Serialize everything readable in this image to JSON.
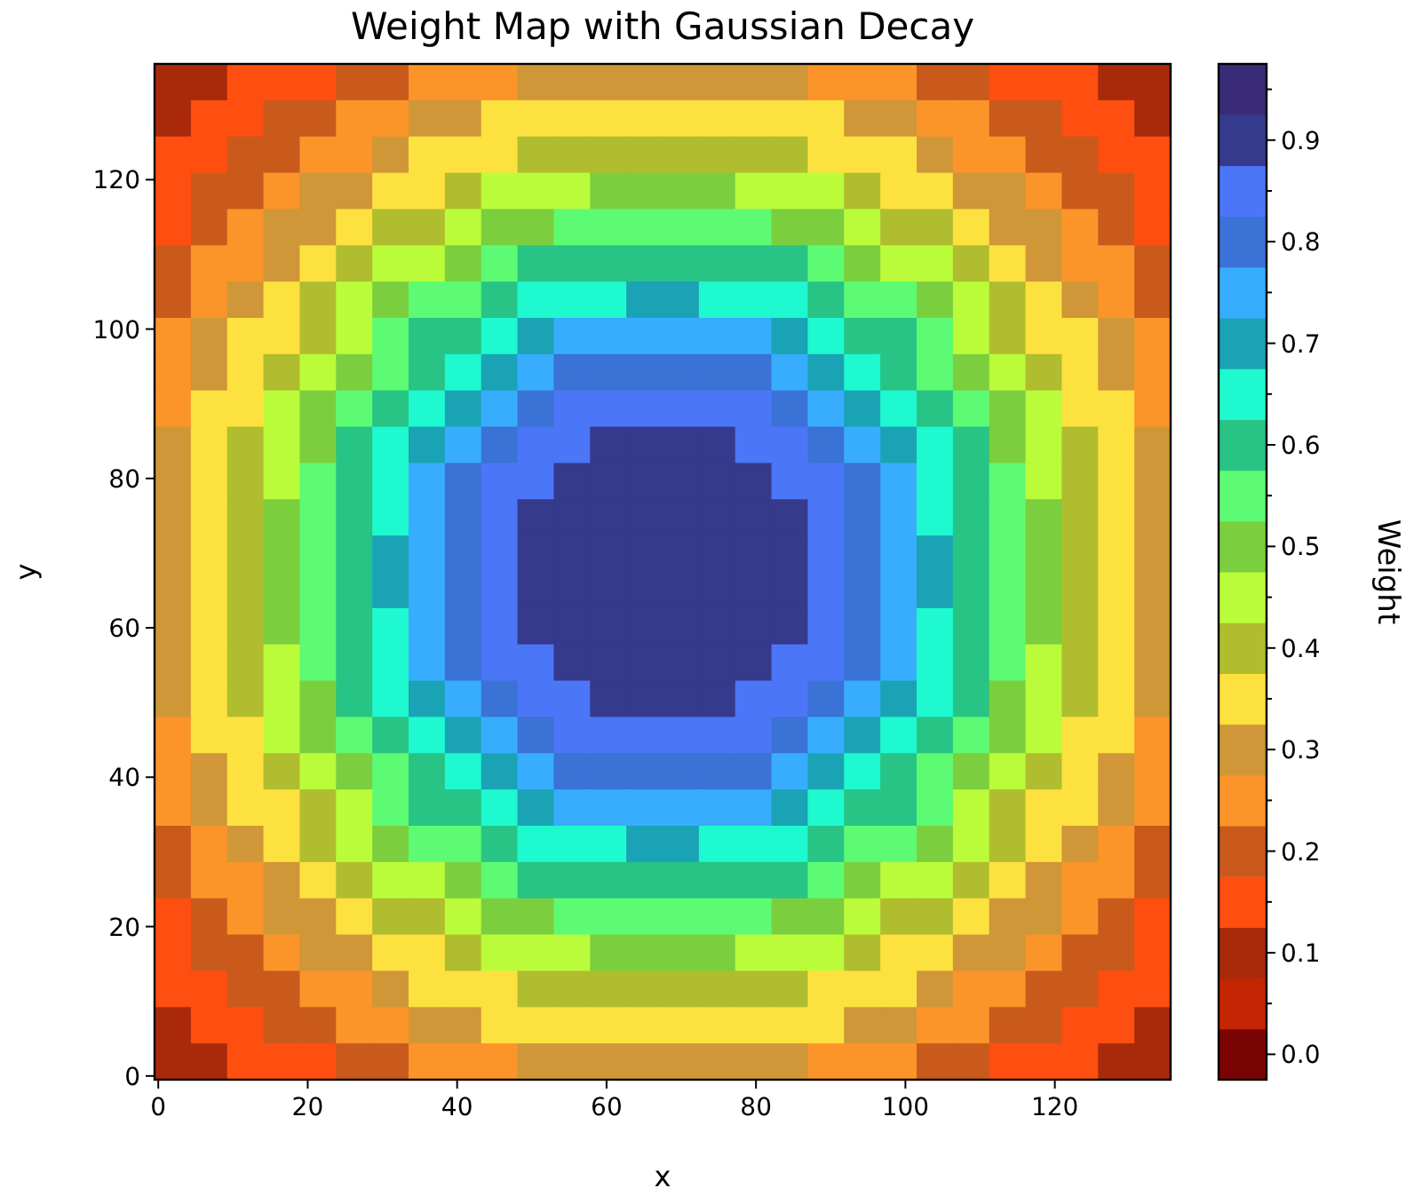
{
  "chart_data": {
    "type": "heatmap",
    "title": "Weight Map with Gaussian Decay",
    "xlabel": "x",
    "ylabel": "y",
    "clabel": "Weight",
    "xlim": [
      -0.5,
      135.5
    ],
    "ylim": [
      -0.5,
      135.5
    ],
    "xticks": [
      0,
      20,
      40,
      60,
      80,
      100,
      120
    ],
    "yticks": [
      0,
      20,
      40,
      60,
      80,
      100,
      120
    ],
    "clim": [
      -0.025,
      0.975
    ],
    "cticks": [
      {
        "value": 0,
        "label": "0.0"
      },
      {
        "value": 0.05,
        "label": null
      },
      {
        "value": 0.1,
        "label": "0.1"
      },
      {
        "value": 0.15,
        "label": null
      },
      {
        "value": 0.2,
        "label": "0.2"
      },
      {
        "value": 0.25,
        "label": null
      },
      {
        "value": 0.3,
        "label": "0.3"
      },
      {
        "value": 0.35,
        "label": null
      },
      {
        "value": 0.4,
        "label": "0.4"
      },
      {
        "value": 0.45,
        "label": null
      },
      {
        "value": 0.5,
        "label": "0.5"
      },
      {
        "value": 0.55,
        "label": null
      },
      {
        "value": 0.6,
        "label": "0.6"
      },
      {
        "value": 0.65,
        "label": null
      },
      {
        "value": 0.7,
        "label": "0.7"
      },
      {
        "value": 0.75,
        "label": null
      },
      {
        "value": 0.8,
        "label": "0.8"
      },
      {
        "value": 0.85,
        "label": null
      },
      {
        "value": 0.9,
        "label": "0.9"
      },
      {
        "value": 0.95,
        "label": null
      }
    ],
    "cells": [
      [
        0.1,
        0.1,
        0.15,
        0.15,
        0.15,
        0.2,
        0.2,
        0.25,
        0.25,
        0.25,
        0.3,
        0.3,
        0.3,
        0.3,
        0.3,
        0.3,
        0.3,
        0.3,
        0.25,
        0.25,
        0.25,
        0.2,
        0.2,
        0.15,
        0.15,
        0.15,
        0.1,
        0.1
      ],
      [
        0.1,
        0.15,
        0.15,
        0.2,
        0.2,
        0.25,
        0.25,
        0.3,
        0.3,
        0.35,
        0.35,
        0.35,
        0.35,
        0.35,
        0.35,
        0.35,
        0.35,
        0.35,
        0.35,
        0.3,
        0.3,
        0.25,
        0.25,
        0.2,
        0.2,
        0.15,
        0.15,
        0.1
      ],
      [
        0.15,
        0.15,
        0.2,
        0.2,
        0.25,
        0.25,
        0.3,
        0.35,
        0.35,
        0.35,
        0.4,
        0.4,
        0.4,
        0.4,
        0.4,
        0.4,
        0.4,
        0.4,
        0.35,
        0.35,
        0.35,
        0.3,
        0.25,
        0.25,
        0.2,
        0.2,
        0.15,
        0.15
      ],
      [
        0.15,
        0.2,
        0.2,
        0.25,
        0.3,
        0.3,
        0.35,
        0.35,
        0.4,
        0.45,
        0.45,
        0.45,
        0.5,
        0.5,
        0.5,
        0.5,
        0.45,
        0.45,
        0.45,
        0.4,
        0.35,
        0.35,
        0.3,
        0.3,
        0.25,
        0.2,
        0.2,
        0.15
      ],
      [
        0.15,
        0.2,
        0.25,
        0.3,
        0.3,
        0.35,
        0.4,
        0.4,
        0.45,
        0.5,
        0.5,
        0.55,
        0.55,
        0.55,
        0.55,
        0.55,
        0.55,
        0.5,
        0.5,
        0.45,
        0.4,
        0.4,
        0.35,
        0.3,
        0.3,
        0.25,
        0.2,
        0.15
      ],
      [
        0.2,
        0.25,
        0.25,
        0.3,
        0.35,
        0.4,
        0.45,
        0.45,
        0.5,
        0.55,
        0.6,
        0.6,
        0.6,
        0.6,
        0.6,
        0.6,
        0.6,
        0.6,
        0.55,
        0.5,
        0.45,
        0.45,
        0.4,
        0.35,
        0.3,
        0.25,
        0.25,
        0.2
      ],
      [
        0.2,
        0.25,
        0.3,
        0.35,
        0.4,
        0.45,
        0.5,
        0.55,
        0.55,
        0.6,
        0.65,
        0.65,
        0.65,
        0.7,
        0.7,
        0.65,
        0.65,
        0.65,
        0.6,
        0.55,
        0.55,
        0.5,
        0.45,
        0.4,
        0.35,
        0.3,
        0.25,
        0.2
      ],
      [
        0.25,
        0.3,
        0.35,
        0.35,
        0.4,
        0.45,
        0.55,
        0.6,
        0.6,
        0.65,
        0.7,
        0.75,
        0.75,
        0.75,
        0.75,
        0.75,
        0.75,
        0.7,
        0.65,
        0.6,
        0.6,
        0.55,
        0.45,
        0.4,
        0.35,
        0.35,
        0.3,
        0.25
      ],
      [
        0.25,
        0.3,
        0.35,
        0.4,
        0.45,
        0.5,
        0.55,
        0.6,
        0.65,
        0.7,
        0.75,
        0.8,
        0.8,
        0.8,
        0.8,
        0.8,
        0.8,
        0.75,
        0.7,
        0.65,
        0.6,
        0.55,
        0.5,
        0.45,
        0.4,
        0.35,
        0.3,
        0.25
      ],
      [
        0.25,
        0.35,
        0.35,
        0.45,
        0.5,
        0.55,
        0.6,
        0.65,
        0.7,
        0.75,
        0.8,
        0.85,
        0.85,
        0.85,
        0.85,
        0.85,
        0.85,
        0.8,
        0.75,
        0.7,
        0.65,
        0.6,
        0.55,
        0.5,
        0.45,
        0.35,
        0.35,
        0.25
      ],
      [
        0.3,
        0.35,
        0.4,
        0.45,
        0.5,
        0.6,
        0.65,
        0.7,
        0.75,
        0.8,
        0.85,
        0.85,
        0.9,
        0.9,
        0.9,
        0.9,
        0.85,
        0.85,
        0.8,
        0.75,
        0.7,
        0.65,
        0.6,
        0.5,
        0.45,
        0.4,
        0.35,
        0.3
      ],
      [
        0.3,
        0.35,
        0.4,
        0.45,
        0.55,
        0.6,
        0.65,
        0.75,
        0.8,
        0.85,
        0.85,
        0.9,
        0.9,
        0.9,
        0.9,
        0.9,
        0.9,
        0.85,
        0.85,
        0.8,
        0.75,
        0.65,
        0.6,
        0.55,
        0.45,
        0.4,
        0.35,
        0.3
      ],
      [
        0.3,
        0.35,
        0.4,
        0.5,
        0.55,
        0.6,
        0.65,
        0.75,
        0.8,
        0.85,
        0.9,
        0.9,
        0.9,
        0.9,
        0.9,
        0.9,
        0.9,
        0.9,
        0.85,
        0.8,
        0.75,
        0.65,
        0.6,
        0.55,
        0.5,
        0.4,
        0.35,
        0.3
      ],
      [
        0.3,
        0.35,
        0.4,
        0.5,
        0.55,
        0.6,
        0.7,
        0.75,
        0.8,
        0.85,
        0.9,
        0.9,
        0.9,
        0.9,
        0.9,
        0.9,
        0.9,
        0.9,
        0.85,
        0.8,
        0.75,
        0.7,
        0.6,
        0.55,
        0.5,
        0.4,
        0.35,
        0.3
      ],
      [
        0.3,
        0.35,
        0.4,
        0.5,
        0.55,
        0.6,
        0.7,
        0.75,
        0.8,
        0.85,
        0.9,
        0.9,
        0.9,
        0.9,
        0.9,
        0.9,
        0.9,
        0.9,
        0.85,
        0.8,
        0.75,
        0.7,
        0.6,
        0.55,
        0.5,
        0.4,
        0.35,
        0.3
      ],
      [
        0.3,
        0.35,
        0.4,
        0.5,
        0.55,
        0.6,
        0.65,
        0.75,
        0.8,
        0.85,
        0.9,
        0.9,
        0.9,
        0.9,
        0.9,
        0.9,
        0.9,
        0.9,
        0.85,
        0.8,
        0.75,
        0.65,
        0.6,
        0.55,
        0.5,
        0.4,
        0.35,
        0.3
      ],
      [
        0.3,
        0.35,
        0.4,
        0.45,
        0.55,
        0.6,
        0.65,
        0.75,
        0.8,
        0.85,
        0.85,
        0.9,
        0.9,
        0.9,
        0.9,
        0.9,
        0.9,
        0.85,
        0.85,
        0.8,
        0.75,
        0.65,
        0.6,
        0.55,
        0.45,
        0.4,
        0.35,
        0.3
      ],
      [
        0.3,
        0.35,
        0.4,
        0.45,
        0.5,
        0.6,
        0.65,
        0.7,
        0.75,
        0.8,
        0.85,
        0.85,
        0.9,
        0.9,
        0.9,
        0.9,
        0.85,
        0.85,
        0.8,
        0.75,
        0.7,
        0.65,
        0.6,
        0.5,
        0.45,
        0.4,
        0.35,
        0.3
      ],
      [
        0.25,
        0.35,
        0.35,
        0.45,
        0.5,
        0.55,
        0.6,
        0.65,
        0.7,
        0.75,
        0.8,
        0.85,
        0.85,
        0.85,
        0.85,
        0.85,
        0.85,
        0.8,
        0.75,
        0.7,
        0.65,
        0.6,
        0.55,
        0.5,
        0.45,
        0.35,
        0.35,
        0.25
      ],
      [
        0.25,
        0.3,
        0.35,
        0.4,
        0.45,
        0.5,
        0.55,
        0.6,
        0.65,
        0.7,
        0.75,
        0.8,
        0.8,
        0.8,
        0.8,
        0.8,
        0.8,
        0.75,
        0.7,
        0.65,
        0.6,
        0.55,
        0.5,
        0.45,
        0.4,
        0.35,
        0.3,
        0.25
      ],
      [
        0.25,
        0.3,
        0.35,
        0.35,
        0.4,
        0.45,
        0.55,
        0.6,
        0.6,
        0.65,
        0.7,
        0.75,
        0.75,
        0.75,
        0.75,
        0.75,
        0.75,
        0.7,
        0.65,
        0.6,
        0.6,
        0.55,
        0.45,
        0.4,
        0.35,
        0.35,
        0.3,
        0.25
      ],
      [
        0.2,
        0.25,
        0.3,
        0.35,
        0.4,
        0.45,
        0.5,
        0.55,
        0.55,
        0.6,
        0.65,
        0.65,
        0.65,
        0.7,
        0.7,
        0.65,
        0.65,
        0.65,
        0.6,
        0.55,
        0.55,
        0.5,
        0.45,
        0.4,
        0.35,
        0.3,
        0.25,
        0.2
      ],
      [
        0.2,
        0.25,
        0.25,
        0.3,
        0.35,
        0.4,
        0.45,
        0.45,
        0.5,
        0.55,
        0.6,
        0.6,
        0.6,
        0.6,
        0.6,
        0.6,
        0.6,
        0.6,
        0.55,
        0.5,
        0.45,
        0.45,
        0.4,
        0.35,
        0.3,
        0.25,
        0.25,
        0.2
      ],
      [
        0.15,
        0.2,
        0.25,
        0.3,
        0.3,
        0.35,
        0.4,
        0.4,
        0.45,
        0.5,
        0.5,
        0.55,
        0.55,
        0.55,
        0.55,
        0.55,
        0.55,
        0.5,
        0.5,
        0.45,
        0.4,
        0.4,
        0.35,
        0.3,
        0.3,
        0.25,
        0.2,
        0.15
      ],
      [
        0.15,
        0.2,
        0.2,
        0.25,
        0.3,
        0.3,
        0.35,
        0.35,
        0.4,
        0.45,
        0.45,
        0.45,
        0.5,
        0.5,
        0.5,
        0.5,
        0.45,
        0.45,
        0.45,
        0.4,
        0.35,
        0.35,
        0.3,
        0.3,
        0.25,
        0.2,
        0.2,
        0.15
      ],
      [
        0.15,
        0.15,
        0.2,
        0.2,
        0.25,
        0.25,
        0.3,
        0.35,
        0.35,
        0.35,
        0.4,
        0.4,
        0.4,
        0.4,
        0.4,
        0.4,
        0.4,
        0.4,
        0.35,
        0.35,
        0.35,
        0.3,
        0.25,
        0.25,
        0.2,
        0.2,
        0.15,
        0.15
      ],
      [
        0.1,
        0.15,
        0.15,
        0.2,
        0.2,
        0.25,
        0.25,
        0.3,
        0.3,
        0.35,
        0.35,
        0.35,
        0.35,
        0.35,
        0.35,
        0.35,
        0.35,
        0.35,
        0.35,
        0.3,
        0.3,
        0.25,
        0.25,
        0.2,
        0.2,
        0.15,
        0.15,
        0.1
      ],
      [
        0.1,
        0.1,
        0.15,
        0.15,
        0.15,
        0.2,
        0.2,
        0.25,
        0.25,
        0.25,
        0.3,
        0.3,
        0.3,
        0.3,
        0.3,
        0.3,
        0.3,
        0.3,
        0.25,
        0.25,
        0.25,
        0.2,
        0.2,
        0.15,
        0.15,
        0.15,
        0.1,
        0.1
      ]
    ]
  }
}
